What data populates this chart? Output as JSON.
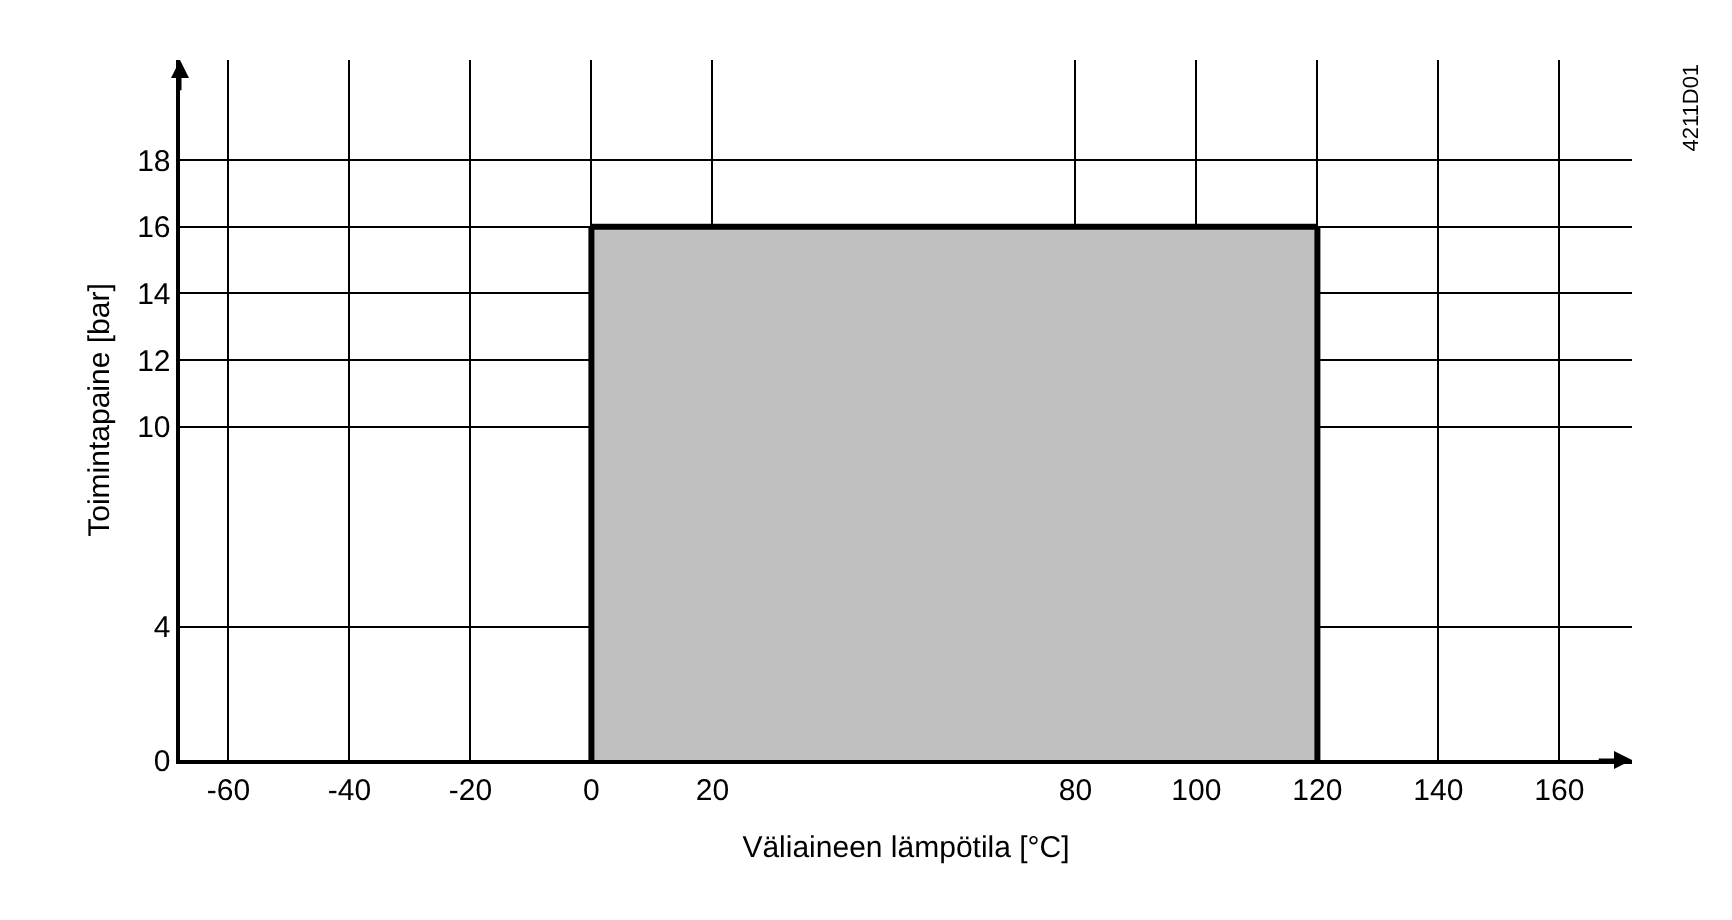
{
  "chart_data": {
    "type": "area",
    "xlabel": "Väliaineen lämpötila [°C]",
    "ylabel": "Toimintapaine [bar]",
    "annotations": [
      "4211D01"
    ],
    "series": [
      {
        "color": "#c0c0c0",
        "x": [
          0,
          120
        ],
        "values": [
          16,
          16
        ]
      }
    ],
    "xlim": [
      -68,
      172
    ],
    "xticks": [
      -60,
      -40,
      -20,
      0,
      20,
      80,
      100,
      120,
      140,
      160
    ],
    "ylim": [
      0,
      21
    ],
    "yticks": [
      0,
      4,
      10,
      12,
      14,
      16,
      18
    ],
    "grid": true
  }
}
